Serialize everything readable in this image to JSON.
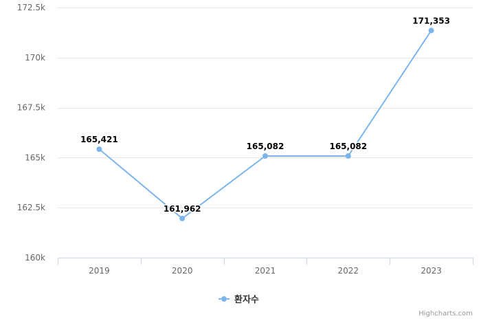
{
  "chart_data": {
    "type": "line",
    "categories": [
      "2019",
      "2020",
      "2021",
      "2022",
      "2023"
    ],
    "series": [
      {
        "name": "환자수",
        "values": [
          165421,
          161962,
          165082,
          165082,
          171353
        ],
        "labels": [
          "165,421",
          "161,962",
          "165,082",
          "165,082",
          "171,353"
        ],
        "color": "#7cb5ec"
      }
    ],
    "ylim": [
      160000,
      172500
    ],
    "yticks": [
      160000,
      162500,
      165000,
      167500,
      170000,
      172500
    ],
    "ytick_labels": [
      "160k",
      "162.5k",
      "165k",
      "167.5k",
      "170k",
      "172.5k"
    ],
    "grid": true,
    "legend": "bottom-center",
    "title": "",
    "xlabel": "",
    "ylabel": ""
  },
  "credits": "Highcharts.com",
  "colors": {
    "grid": "#e6e6e6",
    "axis_line": "#ccd6eb"
  }
}
